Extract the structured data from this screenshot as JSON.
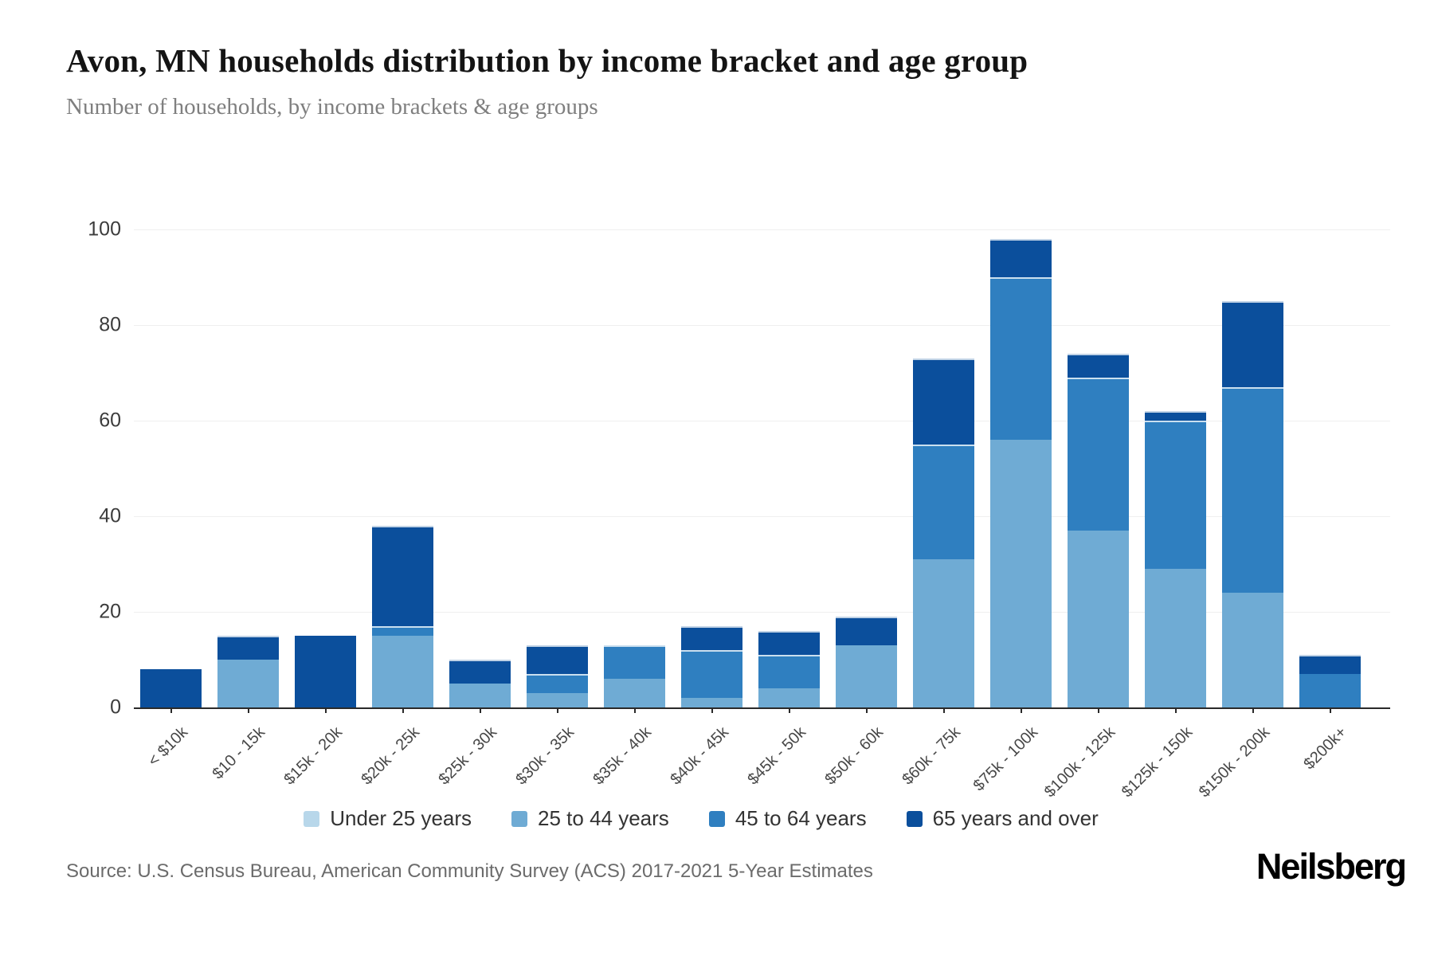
{
  "page": {
    "title": "Avon, MN households distribution by income bracket and age group",
    "subtitle": "Number of households, by income brackets & age groups"
  },
  "footer": {
    "source": "Source: U.S. Census Bureau, American Community Survey (ACS) 2017-2021 5-Year Estimates",
    "logo": "Neilsberg"
  },
  "chart_data": {
    "type": "bar",
    "stacked": true,
    "title": "Avon, MN households distribution by income bracket and age group",
    "subtitle": "Number of households, by income brackets & age groups",
    "xlabel": "",
    "ylabel": "Number of households",
    "ylim": [
      0,
      100
    ],
    "yticks": [
      0,
      20,
      40,
      60,
      80,
      100
    ],
    "grid": true,
    "legend_position": "bottom",
    "categories": [
      "< $10k",
      "$10 - 15k",
      "$15k - 20k",
      "$20k - 25k",
      "$25k - 30k",
      "$30k - 35k",
      "$35k - 40k",
      "$40k - 45k",
      "$45k - 50k",
      "$50k - 60k",
      "$60k - 75k",
      "$75k - 100k",
      "$100k - 125k",
      "$125k - 150k",
      "$150k - 200k",
      "$200k+"
    ],
    "series": [
      {
        "name": "Under 25 years",
        "color": "#b8d7ea",
        "values": [
          0,
          0,
          0,
          0,
          0,
          0,
          0,
          0,
          0,
          0,
          0,
          0,
          0,
          0,
          0,
          0
        ]
      },
      {
        "name": "25 to 44 years",
        "color": "#6fabd4",
        "values": [
          0,
          10,
          0,
          15,
          5,
          3,
          6,
          2,
          4,
          13,
          31,
          56,
          37,
          29,
          24,
          0
        ]
      },
      {
        "name": "45 to 64 years",
        "color": "#2f7fc0",
        "values": [
          0,
          0,
          0,
          2,
          0,
          4,
          7,
          10,
          7,
          0,
          24,
          34,
          32,
          31,
          43,
          7
        ]
      },
      {
        "name": "65 years and over",
        "color": "#0b4f9c",
        "values": [
          8,
          5,
          15,
          21,
          5,
          6,
          0,
          5,
          5,
          6,
          18,
          8,
          5,
          2,
          18,
          4
        ]
      }
    ],
    "totals": [
      8,
      15,
      15,
      38,
      10,
      13,
      13,
      17,
      16,
      19,
      73,
      98,
      74,
      62,
      85,
      11
    ]
  }
}
